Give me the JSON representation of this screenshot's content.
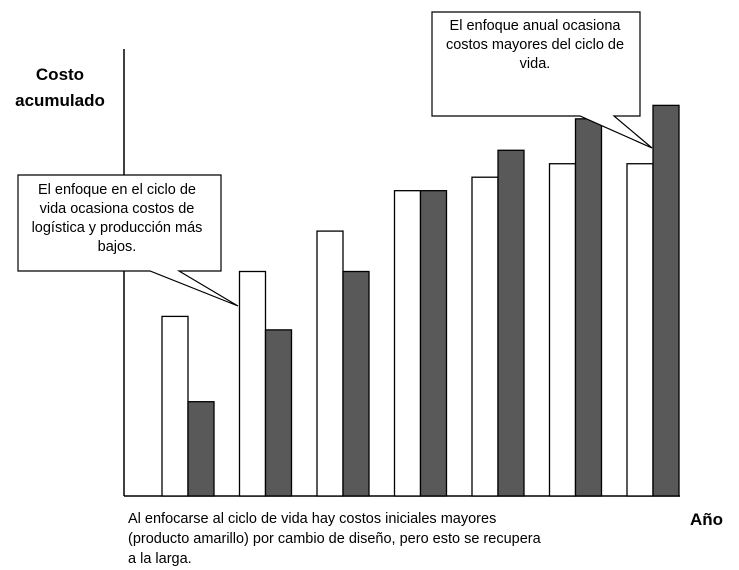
{
  "chart_data": {
    "type": "bar",
    "categories": [
      "",
      "",
      "",
      "",
      "",
      "",
      ""
    ],
    "series": [
      {
        "color": "#ffffff",
        "values": [
          4.0,
          5.0,
          5.9,
          6.8,
          7.1,
          7.4,
          7.4
        ]
      },
      {
        "color": "#595959",
        "values": [
          2.1,
          3.7,
          5.0,
          6.8,
          7.7,
          8.4,
          8.7
        ]
      }
    ],
    "ylim": [
      0,
      10
    ],
    "ylabel": "Costo acumulado",
    "xlabel": "Año",
    "grid": false,
    "annotations": [
      "El enfoque en el ciclo de vida ocasiona costos de logística y producción más bajos.",
      "El enfoque anual ocasiona costos mayores del ciclo de vida."
    ]
  },
  "caption": "Al enfocarse al ciclo de vida hay costos iniciales mayores (producto amarillo) por cambio de diseño, pero esto se recupera a la larga."
}
